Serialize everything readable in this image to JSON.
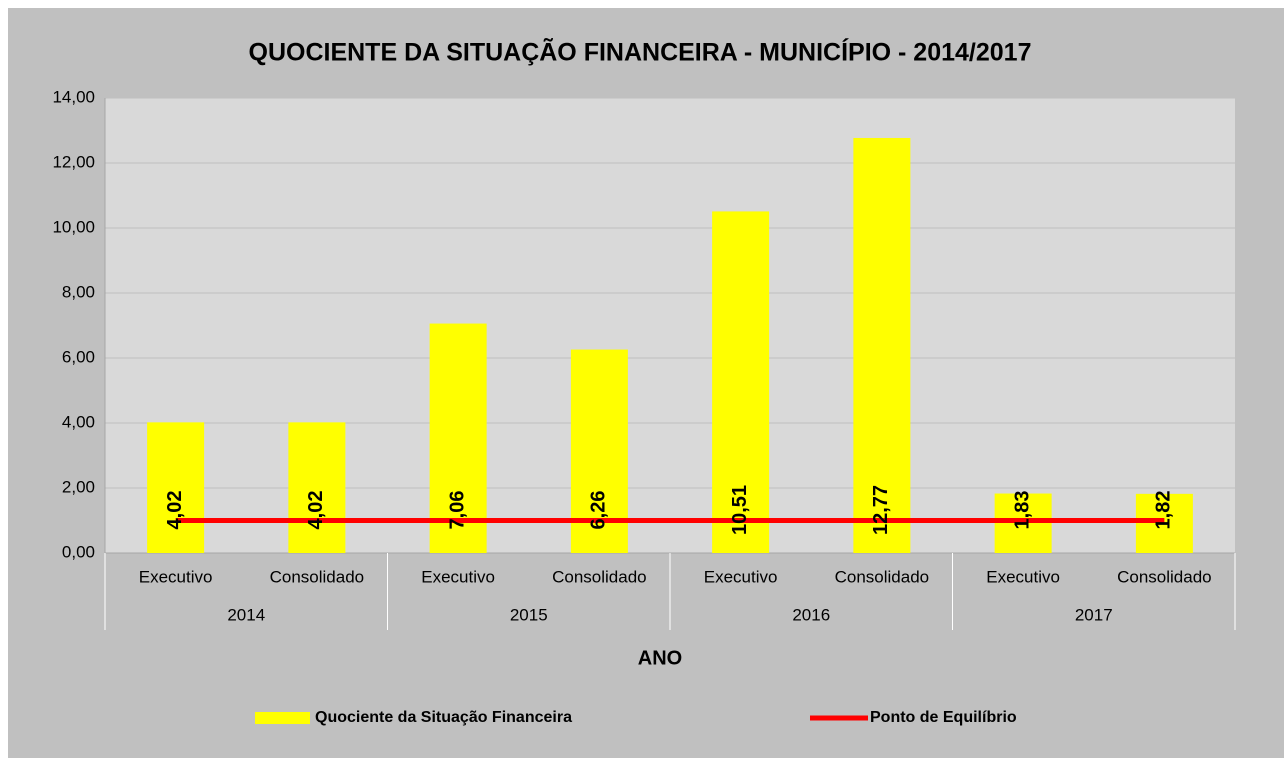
{
  "chart_data": {
    "type": "bar",
    "title": "QUOCIENTE  DA SITUAÇÃO FINANCEIRA  - MUNICÍPIO  - 2014/2017",
    "x_label": "ANO",
    "categories": [
      "Executivo",
      "Consolidado",
      "Executivo",
      "Consolidado",
      "Executivo",
      "Consolidado",
      "Executivo",
      "Consolidado"
    ],
    "groups": [
      "2014",
      "2015",
      "2016",
      "2017"
    ],
    "series": [
      {
        "name": "Quociente da Situação Financeira",
        "type": "bar",
        "color": "#ffff00",
        "values": [
          4.02,
          4.02,
          7.06,
          6.26,
          10.51,
          12.77,
          1.83,
          1.82
        ],
        "value_labels": [
          "4,02",
          "4,02",
          "7,06",
          "6,26",
          "10,51",
          "12,77",
          "1,83",
          "1,82"
        ]
      },
      {
        "name": "Ponto de Equilíbrio",
        "type": "line",
        "color": "#ff0000",
        "values": [
          1,
          1,
          1,
          1,
          1,
          1,
          1,
          1
        ]
      }
    ],
    "ylim": [
      0,
      14
    ],
    "yticks": [
      {
        "value": 0,
        "label": "0,00"
      },
      {
        "value": 2,
        "label": "2,00"
      },
      {
        "value": 4,
        "label": "4,00"
      },
      {
        "value": 6,
        "label": "6,00"
      },
      {
        "value": 8,
        "label": "8,00"
      },
      {
        "value": 10,
        "label": "10,00"
      },
      {
        "value": 12,
        "label": "12,00"
      },
      {
        "value": 14,
        "label": "14,00"
      }
    ],
    "grid": true,
    "legend": "bottom"
  }
}
